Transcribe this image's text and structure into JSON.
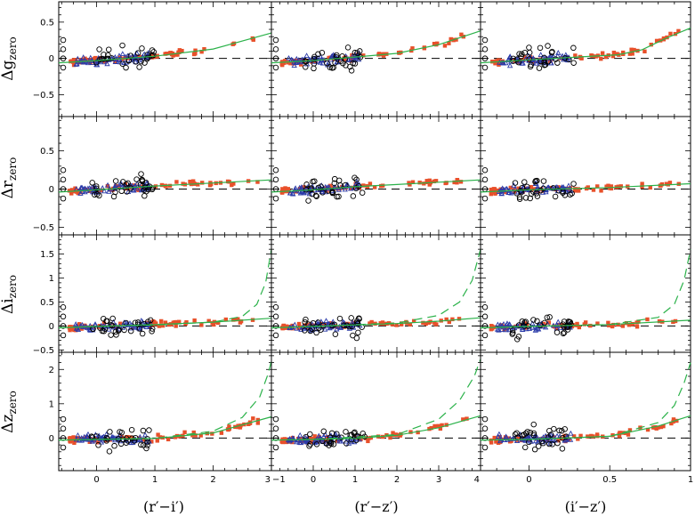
{
  "colors": {
    "fit_line": "#2bb24a",
    "orange_markers": "#e8502a",
    "blue_markers": "#2a3aa8",
    "open_circles": "#000000",
    "zero_line": "#000000"
  },
  "ylabels": [
    {
      "main": "Δg",
      "sub": "zero"
    },
    {
      "main": "Δr",
      "sub": "zero"
    },
    {
      "main": "Δi",
      "sub": "zero"
    },
    {
      "main": "Δz",
      "sub": "zero"
    }
  ],
  "xlabels": [
    "(r′−i′)",
    "(r′−z′)",
    "(i′−z′)"
  ],
  "chart_data": {
    "type": "scatter",
    "layout": "4 rows x 3 columns grid of panels with shared axes",
    "grid": false,
    "zero_line": "dashed horizontal at y = 0",
    "columns": [
      {
        "xlabel": "(r′−i′)",
        "xlim": [
          -0.65,
          3.0
        ],
        "xticks": [
          {
            "v": 0,
            "label": "0"
          },
          {
            "v": 1,
            "label": "1"
          },
          {
            "v": 2,
            "label": "2"
          },
          {
            "v": 3,
            "label": "3"
          }
        ]
      },
      {
        "xlabel": "(r′−z′)",
        "xlim": [
          -1.0,
          4.0
        ],
        "xticks": [
          {
            "v": -1,
            "label": "−1"
          },
          {
            "v": 0,
            "label": "0"
          },
          {
            "v": 1,
            "label": "1"
          },
          {
            "v": 2,
            "label": "2"
          },
          {
            "v": 3,
            "label": "3"
          },
          {
            "v": 4,
            "label": "4"
          }
        ]
      },
      {
        "xlabel": "(i′−z′)",
        "xlim": [
          -0.3,
          1.0
        ],
        "xticks": [
          {
            "v": 0,
            "label": "0"
          },
          {
            "v": 0.5,
            "label": "0.5"
          },
          {
            "v": 1,
            "label": "1"
          }
        ]
      }
    ],
    "rows": [
      {
        "ylabel": "Δg_zero",
        "ylim": [
          -0.8,
          0.78
        ],
        "yticks": [
          {
            "v": -0.5,
            "label": "−0.5"
          },
          {
            "v": 0,
            "label": "0"
          },
          {
            "v": 0.5,
            "label": "0.5"
          }
        ],
        "fits": [
          {
            "solid": [
              [
                -0.65,
                -0.06
              ],
              [
                0.0,
                -0.03
              ],
              [
                1.0,
                0.03
              ],
              [
                2.0,
                0.13
              ],
              [
                3.0,
                0.35
              ]
            ]
          },
          {
            "solid": [
              [
                -1.0,
                -0.06
              ],
              [
                0.0,
                -0.03
              ],
              [
                1.0,
                0.02
              ],
              [
                2.0,
                0.07
              ],
              [
                3.0,
                0.19
              ],
              [
                4.0,
                0.38
              ]
            ]
          },
          {
            "solid": [
              [
                -0.3,
                -0.06
              ],
              [
                0.0,
                -0.02
              ],
              [
                0.3,
                0.02
              ],
              [
                0.55,
                0.05
              ],
              [
                0.7,
                0.12
              ],
              [
                0.85,
                0.28
              ],
              [
                1.0,
                0.42
              ]
            ]
          }
        ]
      },
      {
        "ylabel": "Δr_zero",
        "ylim": [
          -0.6,
          0.95
        ],
        "yticks": [
          {
            "v": -0.5,
            "label": "−0.5"
          },
          {
            "v": 0,
            "label": "0"
          },
          {
            "v": 0.5,
            "label": "0.5"
          }
        ],
        "fits": [
          {
            "solid": [
              [
                -0.65,
                -0.04
              ],
              [
                0.0,
                -0.01
              ],
              [
                1.0,
                0.04
              ],
              [
                2.0,
                0.08
              ],
              [
                3.0,
                0.12
              ]
            ]
          },
          {
            "solid": [
              [
                -1.0,
                -0.04
              ],
              [
                0.0,
                -0.01
              ],
              [
                1.0,
                0.03
              ],
              [
                2.0,
                0.06
              ],
              [
                3.0,
                0.09
              ],
              [
                4.0,
                0.12
              ]
            ]
          },
          {
            "solid": [
              [
                -0.3,
                -0.04
              ],
              [
                0.0,
                -0.01
              ],
              [
                0.5,
                0.02
              ],
              [
                1.0,
                0.07
              ]
            ]
          }
        ]
      },
      {
        "ylabel": "Δi_zero",
        "ylim": [
          -0.55,
          1.9
        ],
        "yticks": [
          {
            "v": -0.5,
            "label": "−0.5"
          },
          {
            "v": 0,
            "label": "0"
          },
          {
            "v": 0.5,
            "label": "0.5"
          },
          {
            "v": 1,
            "label": "1"
          },
          {
            "v": 1.5,
            "label": "1.5"
          }
        ],
        "fits": [
          {
            "solid": [
              [
                -0.65,
                -0.04
              ],
              [
                0.0,
                -0.01
              ],
              [
                1.0,
                0.03
              ],
              [
                2.0,
                0.08
              ],
              [
                3.0,
                0.16
              ]
            ],
            "dashed": [
              [
                -0.65,
                -0.04
              ],
              [
                0.0,
                -0.01
              ],
              [
                1.0,
                0.02
              ],
              [
                2.0,
                0.08
              ],
              [
                2.5,
                0.2
              ],
              [
                2.75,
                0.45
              ],
              [
                2.9,
                0.9
              ],
              [
                3.0,
                1.6
              ]
            ]
          },
          {
            "solid": [
              [
                -1.0,
                -0.04
              ],
              [
                0.0,
                -0.01
              ],
              [
                1.0,
                0.02
              ],
              [
                2.0,
                0.05
              ],
              [
                3.0,
                0.1
              ],
              [
                4.0,
                0.17
              ]
            ],
            "dashed": [
              [
                -1.0,
                -0.04
              ],
              [
                0.0,
                -0.01
              ],
              [
                2.0,
                0.06
              ],
              [
                3.0,
                0.22
              ],
              [
                3.5,
                0.5
              ],
              [
                3.8,
                0.95
              ],
              [
                4.0,
                1.6
              ]
            ]
          },
          {
            "solid": [
              [
                -0.3,
                -0.04
              ],
              [
                0.0,
                -0.01
              ],
              [
                0.5,
                0.03
              ],
              [
                1.0,
                0.12
              ]
            ],
            "dashed": [
              [
                -0.3,
                -0.04
              ],
              [
                0.0,
                -0.01
              ],
              [
                0.5,
                0.03
              ],
              [
                0.8,
                0.18
              ],
              [
                0.9,
                0.45
              ],
              [
                0.96,
                0.95
              ],
              [
                1.0,
                1.6
              ]
            ]
          }
        ]
      },
      {
        "ylabel": "Δz_zero",
        "ylim": [
          -0.95,
          2.5
        ],
        "yticks": [
          {
            "v": 0,
            "label": "0"
          },
          {
            "v": 1,
            "label": "1"
          },
          {
            "v": 2,
            "label": "2"
          }
        ],
        "fits": [
          {
            "solid": [
              [
                -0.65,
                -0.06
              ],
              [
                0.0,
                -0.04
              ],
              [
                1.0,
                -0.01
              ],
              [
                2.0,
                0.15
              ],
              [
                3.0,
                0.62
              ]
            ],
            "dashed": [
              [
                -0.65,
                -0.06
              ],
              [
                0.0,
                -0.04
              ],
              [
                1.0,
                -0.01
              ],
              [
                2.0,
                0.2
              ],
              [
                2.5,
                0.6
              ],
              [
                2.8,
                1.2
              ],
              [
                2.95,
                1.9
              ],
              [
                3.0,
                2.25
              ]
            ]
          },
          {
            "solid": [
              [
                -1.0,
                -0.06
              ],
              [
                0.0,
                -0.04
              ],
              [
                1.0,
                -0.01
              ],
              [
                2.0,
                0.08
              ],
              [
                3.0,
                0.3
              ],
              [
                4.0,
                0.65
              ]
            ],
            "dashed": [
              [
                -1.0,
                -0.06
              ],
              [
                0.0,
                -0.04
              ],
              [
                2.0,
                0.1
              ],
              [
                3.0,
                0.55
              ],
              [
                3.5,
                1.1
              ],
              [
                3.85,
                1.8
              ],
              [
                4.0,
                2.3
              ]
            ]
          },
          {
            "solid": [
              [
                -0.3,
                -0.06
              ],
              [
                0.0,
                -0.04
              ],
              [
                0.5,
                0.05
              ],
              [
                0.8,
                0.35
              ],
              [
                1.0,
                0.65
              ]
            ],
            "dashed": [
              [
                -0.3,
                -0.06
              ],
              [
                0.0,
                -0.04
              ],
              [
                0.5,
                0.05
              ],
              [
                0.8,
                0.45
              ],
              [
                0.9,
                0.95
              ],
              [
                0.96,
                1.6
              ],
              [
                1.0,
                2.2
              ]
            ]
          }
        ]
      }
    ]
  }
}
